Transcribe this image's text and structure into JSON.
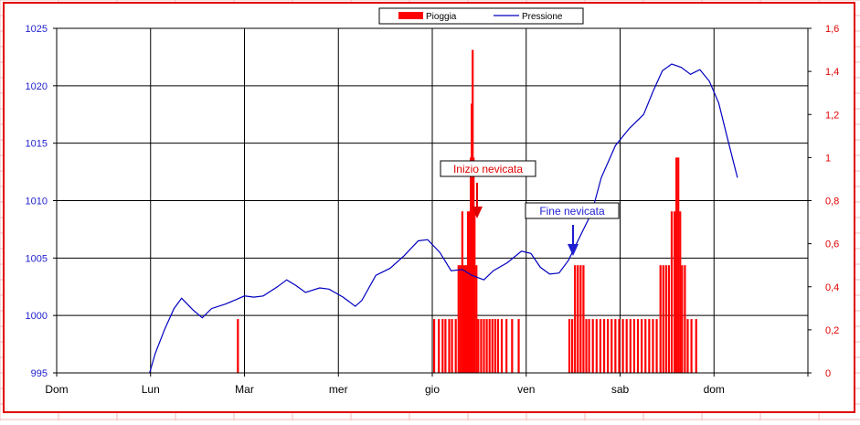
{
  "colors": {
    "rain": "#ff0000",
    "pressure": "#0000c0",
    "left_axis": "#1e1ed0",
    "right_axis": "#e00000",
    "grid": "#000000",
    "sheet_grid": "#f2b8b8",
    "frame": "#e00000"
  },
  "legend": {
    "rain_label": "Pioggia",
    "pressure_label": "Pressione"
  },
  "annotations": {
    "start": "Inizio nevicata",
    "end": "Fine nevicata"
  },
  "chart_data": {
    "type": "bar",
    "title": "",
    "xlabel": "",
    "categories": [
      "Dom",
      "Lun",
      "Mar",
      "mer",
      "gio",
      "ven",
      "sab",
      "dom",
      ""
    ],
    "grid": true,
    "legend_position": "top-center",
    "y_left": {
      "label": "",
      "range": [
        995,
        1025
      ],
      "ticks": [
        "995",
        "1000",
        "1005",
        "1010",
        "1015",
        "1020",
        "1025"
      ]
    },
    "y_right": {
      "label": "",
      "range": [
        0,
        1.6
      ],
      "ticks": [
        "0",
        "0,2",
        "0,4",
        "0,6",
        "0,8",
        "1",
        "1,2",
        "1,4",
        "1,6"
      ]
    },
    "series": [
      {
        "name": "Pressione",
        "type": "line",
        "axis": "left",
        "points": [
          [
            0.99,
            995.0
          ],
          [
            1.05,
            996.7
          ],
          [
            1.15,
            998.8
          ],
          [
            1.25,
            1000.6
          ],
          [
            1.33,
            1001.5
          ],
          [
            1.45,
            1000.5
          ],
          [
            1.55,
            999.8
          ],
          [
            1.65,
            1000.6
          ],
          [
            1.8,
            1001.0
          ],
          [
            2.0,
            1001.7
          ],
          [
            2.1,
            1001.6
          ],
          [
            2.2,
            1001.7
          ],
          [
            2.35,
            1002.5
          ],
          [
            2.45,
            1003.1
          ],
          [
            2.55,
            1002.6
          ],
          [
            2.65,
            1002.0
          ],
          [
            2.8,
            1002.4
          ],
          [
            2.9,
            1002.3
          ],
          [
            3.05,
            1001.6
          ],
          [
            3.18,
            1000.8
          ],
          [
            3.25,
            1001.3
          ],
          [
            3.4,
            1003.5
          ],
          [
            3.55,
            1004.1
          ],
          [
            3.7,
            1005.2
          ],
          [
            3.85,
            1006.5
          ],
          [
            3.95,
            1006.6
          ],
          [
            4.08,
            1005.5
          ],
          [
            4.2,
            1003.9
          ],
          [
            4.32,
            1004.0
          ],
          [
            4.42,
            1003.5
          ],
          [
            4.55,
            1003.1
          ],
          [
            4.65,
            1003.9
          ],
          [
            4.8,
            1004.6
          ],
          [
            4.95,
            1005.6
          ],
          [
            5.05,
            1005.4
          ],
          [
            5.15,
            1004.2
          ],
          [
            5.25,
            1003.6
          ],
          [
            5.35,
            1003.7
          ],
          [
            5.45,
            1004.8
          ],
          [
            5.55,
            1006.5
          ],
          [
            5.7,
            1009.0
          ],
          [
            5.8,
            1012.0
          ],
          [
            5.95,
            1014.8
          ],
          [
            6.1,
            1016.3
          ],
          [
            6.25,
            1017.5
          ],
          [
            6.35,
            1019.5
          ],
          [
            6.45,
            1021.3
          ],
          [
            6.55,
            1021.9
          ],
          [
            6.65,
            1021.6
          ],
          [
            6.75,
            1021.0
          ],
          [
            6.85,
            1021.4
          ],
          [
            6.95,
            1020.4
          ],
          [
            7.05,
            1018.5
          ],
          [
            7.15,
            1015.2
          ],
          [
            7.25,
            1012.0
          ]
        ]
      },
      {
        "name": "Pioggia",
        "type": "bar",
        "axis": "right",
        "bars": [
          [
            1.93,
            0.25
          ],
          [
            4.02,
            0.25
          ],
          [
            4.07,
            0.25
          ],
          [
            4.11,
            0.25
          ],
          [
            4.14,
            0.25
          ],
          [
            4.18,
            0.25
          ],
          [
            4.21,
            0.25
          ],
          [
            4.25,
            0.25
          ],
          [
            4.28,
            0.5
          ],
          [
            4.3,
            0.5
          ],
          [
            4.32,
            0.75
          ],
          [
            4.34,
            0.5
          ],
          [
            4.36,
            0.5
          ],
          [
            4.38,
            0.75
          ],
          [
            4.4,
            0.75
          ],
          [
            4.41,
            1.0
          ],
          [
            4.42,
            1.25
          ],
          [
            4.43,
            1.5
          ],
          [
            4.44,
            1.0
          ],
          [
            4.45,
            0.75
          ],
          [
            4.47,
            0.5
          ],
          [
            4.49,
            0.25
          ],
          [
            4.52,
            0.25
          ],
          [
            4.55,
            0.25
          ],
          [
            4.58,
            0.25
          ],
          [
            4.61,
            0.25
          ],
          [
            4.64,
            0.25
          ],
          [
            4.67,
            0.25
          ],
          [
            4.7,
            0.25
          ],
          [
            4.74,
            0.25
          ],
          [
            4.79,
            0.25
          ],
          [
            4.85,
            0.25
          ],
          [
            4.92,
            0.25
          ],
          [
            5.46,
            0.25
          ],
          [
            5.49,
            0.25
          ],
          [
            5.52,
            0.5
          ],
          [
            5.55,
            0.5
          ],
          [
            5.58,
            0.5
          ],
          [
            5.61,
            0.5
          ],
          [
            5.64,
            0.25
          ],
          [
            5.67,
            0.25
          ],
          [
            5.71,
            0.25
          ],
          [
            5.75,
            0.25
          ],
          [
            5.79,
            0.25
          ],
          [
            5.83,
            0.25
          ],
          [
            5.87,
            0.25
          ],
          [
            5.91,
            0.25
          ],
          [
            5.95,
            0.25
          ],
          [
            5.99,
            0.25
          ],
          [
            6.03,
            0.25
          ],
          [
            6.07,
            0.25
          ],
          [
            6.11,
            0.25
          ],
          [
            6.15,
            0.25
          ],
          [
            6.19,
            0.25
          ],
          [
            6.23,
            0.25
          ],
          [
            6.27,
            0.25
          ],
          [
            6.31,
            0.25
          ],
          [
            6.35,
            0.25
          ],
          [
            6.39,
            0.25
          ],
          [
            6.43,
            0.5
          ],
          [
            6.46,
            0.5
          ],
          [
            6.49,
            0.5
          ],
          [
            6.52,
            0.5
          ],
          [
            6.55,
            0.75
          ],
          [
            6.58,
            0.75
          ],
          [
            6.6,
            1.0
          ],
          [
            6.62,
            1.0
          ],
          [
            6.64,
            0.75
          ],
          [
            6.66,
            0.5
          ],
          [
            6.69,
            0.5
          ],
          [
            6.72,
            0.25
          ],
          [
            6.76,
            0.25
          ],
          [
            6.81,
            0.25
          ]
        ]
      }
    ]
  }
}
